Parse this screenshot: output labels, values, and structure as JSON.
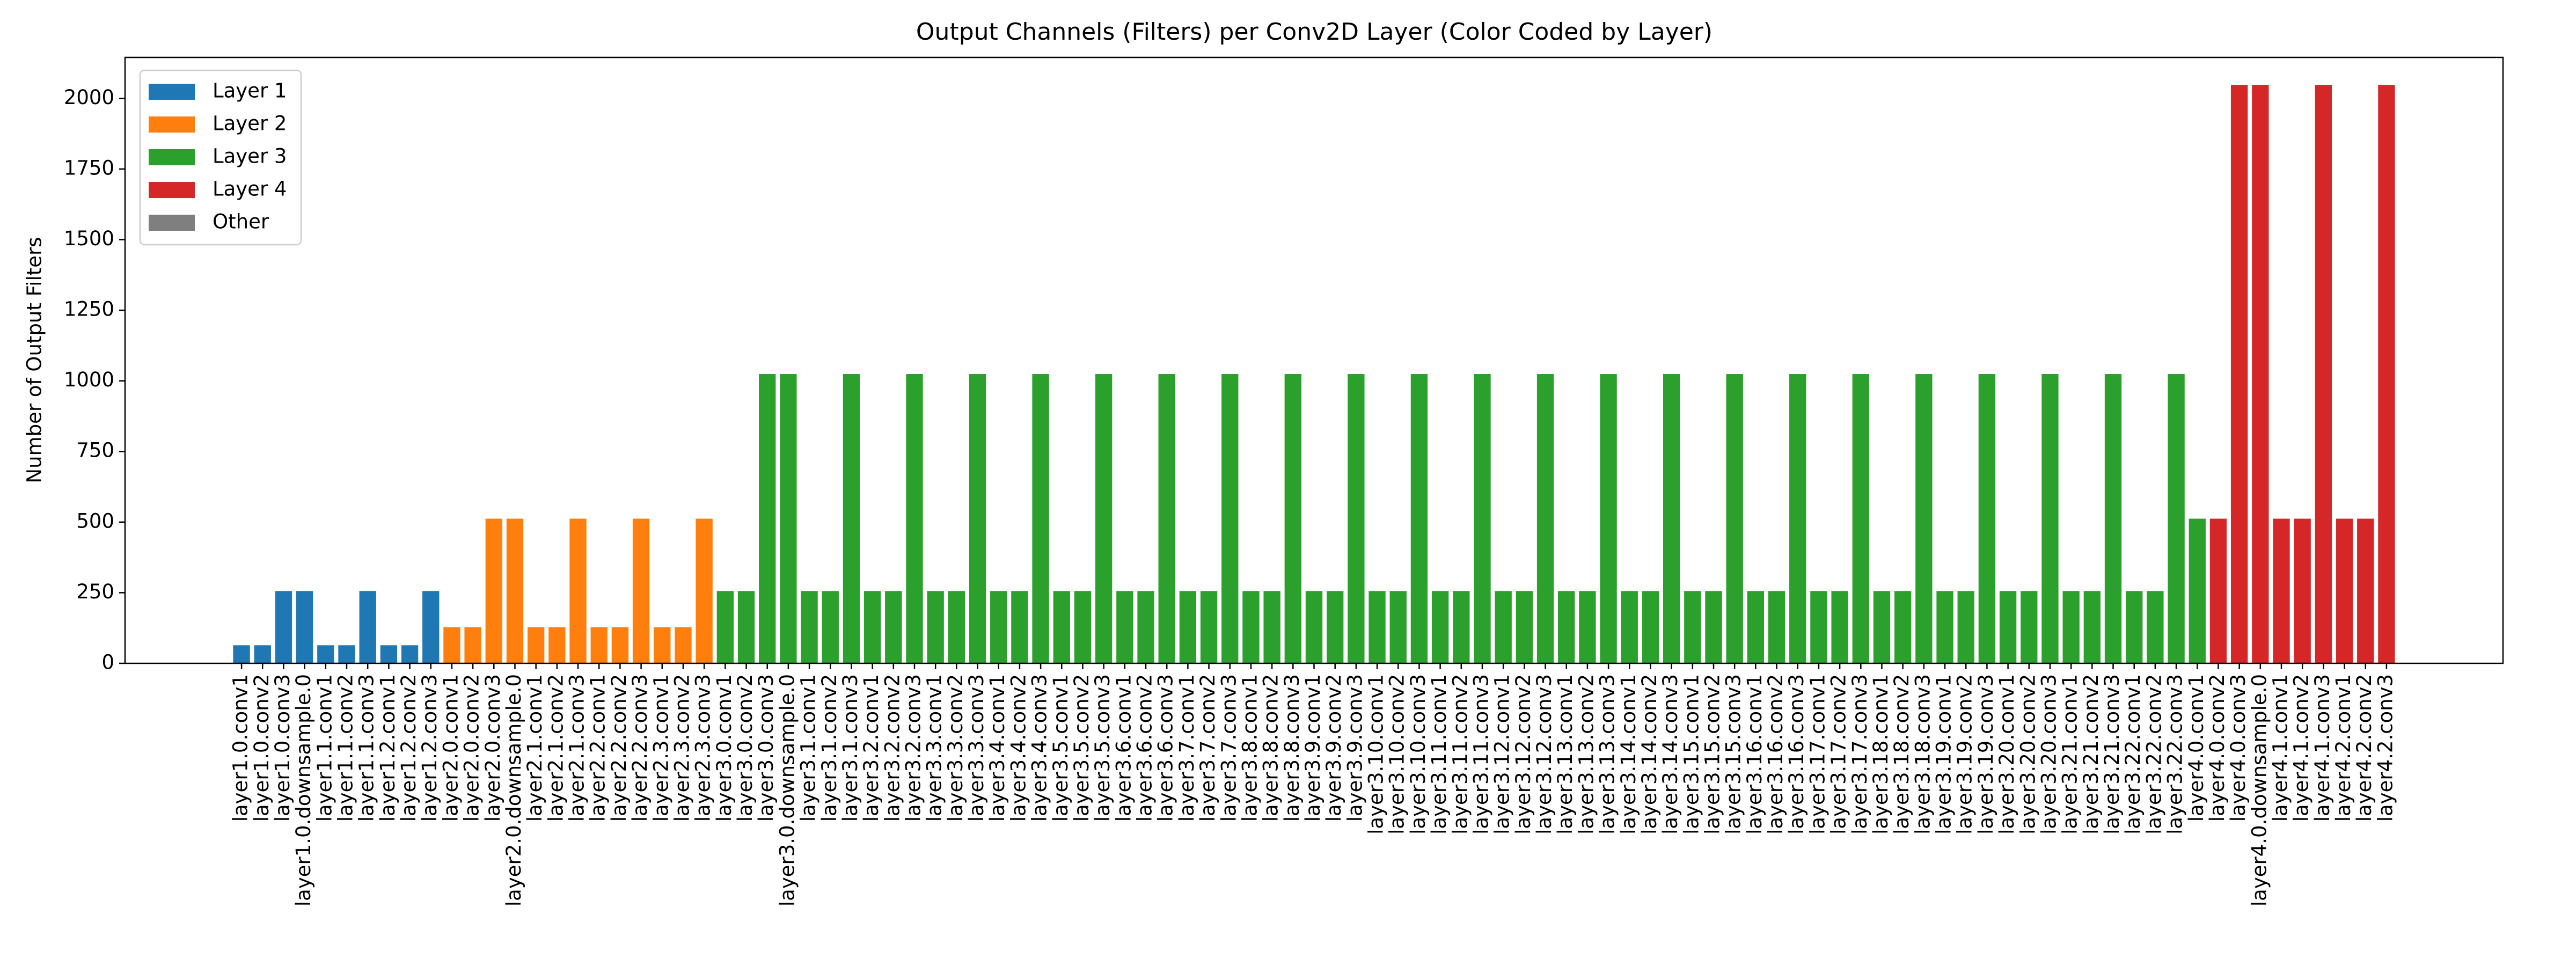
{
  "chart_data": {
    "type": "bar",
    "title": "Output Channels (Filters) per Conv2D Layer (Color Coded by Layer)",
    "y_label": "Number of Output Filters",
    "categories": [
      "layer1.0.conv1",
      "layer1.0.conv2",
      "layer1.0.conv3",
      "layer1.0.downsample.0",
      "layer1.1.conv1",
      "layer1.1.conv2",
      "layer1.1.conv3",
      "layer1.2.conv1",
      "layer1.2.conv2",
      "layer1.2.conv3",
      "layer2.0.conv1",
      "layer2.0.conv2",
      "layer2.0.conv3",
      "layer2.0.downsample.0",
      "layer2.1.conv1",
      "layer2.1.conv2",
      "layer2.1.conv3",
      "layer2.2.conv1",
      "layer2.2.conv2",
      "layer2.2.conv3",
      "layer2.3.conv1",
      "layer2.3.conv2",
      "layer2.3.conv3",
      "layer3.0.conv1",
      "layer3.0.conv2",
      "layer3.0.conv3",
      "layer3.0.downsample.0",
      "layer3.1.conv1",
      "layer3.1.conv2",
      "layer3.1.conv3",
      "layer3.2.conv1",
      "layer3.2.conv2",
      "layer3.2.conv3",
      "layer3.3.conv1",
      "layer3.3.conv2",
      "layer3.3.conv3",
      "layer3.4.conv1",
      "layer3.4.conv2",
      "layer3.4.conv3",
      "layer3.5.conv1",
      "layer3.5.conv2",
      "layer3.5.conv3",
      "layer3.6.conv1",
      "layer3.6.conv2",
      "layer3.6.conv3",
      "layer3.7.conv1",
      "layer3.7.conv2",
      "layer3.7.conv3",
      "layer3.8.conv1",
      "layer3.8.conv2",
      "layer3.8.conv3",
      "layer3.9.conv1",
      "layer3.9.conv2",
      "layer3.9.conv3",
      "layer3.10.conv1",
      "layer3.10.conv2",
      "layer3.10.conv3",
      "layer3.11.conv1",
      "layer3.11.conv2",
      "layer3.11.conv3",
      "layer3.12.conv1",
      "layer3.12.conv2",
      "layer3.12.conv3",
      "layer3.13.conv1",
      "layer3.13.conv2",
      "layer3.13.conv3",
      "layer3.14.conv1",
      "layer3.14.conv2",
      "layer3.14.conv3",
      "layer3.15.conv1",
      "layer3.15.conv2",
      "layer3.15.conv3",
      "layer3.16.conv1",
      "layer3.16.conv2",
      "layer3.16.conv3",
      "layer3.17.conv1",
      "layer3.17.conv2",
      "layer3.17.conv3",
      "layer3.18.conv1",
      "layer3.18.conv2",
      "layer3.18.conv3",
      "layer3.19.conv1",
      "layer3.19.conv2",
      "layer3.19.conv3",
      "layer3.20.conv1",
      "layer3.20.conv2",
      "layer3.20.conv3",
      "layer3.21.conv1",
      "layer3.21.conv2",
      "layer3.21.conv3",
      "layer3.22.conv1",
      "layer3.22.conv2",
      "layer3.22.conv3",
      "layer4.0.conv1",
      "layer4.0.conv2",
      "layer4.0.conv3",
      "layer4.0.downsample.0",
      "layer4.1.conv1",
      "layer4.1.conv2",
      "layer4.1.conv3",
      "layer4.2.conv1",
      "layer4.2.conv2",
      "layer4.2.conv3"
    ],
    "values": [
      64,
      64,
      256,
      256,
      64,
      64,
      256,
      64,
      64,
      256,
      128,
      128,
      512,
      512,
      128,
      128,
      512,
      128,
      128,
      512,
      128,
      128,
      512,
      256,
      256,
      1024,
      1024,
      256,
      256,
      1024,
      256,
      256,
      1024,
      256,
      256,
      1024,
      256,
      256,
      1024,
      256,
      256,
      1024,
      256,
      256,
      1024,
      256,
      256,
      1024,
      256,
      256,
      1024,
      256,
      256,
      1024,
      256,
      256,
      1024,
      256,
      256,
      1024,
      256,
      256,
      1024,
      256,
      256,
      1024,
      256,
      256,
      1024,
      256,
      256,
      1024,
      256,
      256,
      1024,
      256,
      256,
      1024,
      256,
      256,
      1024,
      256,
      256,
      1024,
      256,
      256,
      1024,
      256,
      256,
      1024,
      256,
      256,
      1024,
      512,
      512,
      2048,
      2048,
      512,
      512,
      2048,
      512,
      512,
      2048
    ],
    "colors": [
      "#1f77b4",
      "#1f77b4",
      "#1f77b4",
      "#1f77b4",
      "#1f77b4",
      "#1f77b4",
      "#1f77b4",
      "#1f77b4",
      "#1f77b4",
      "#1f77b4",
      "#ff7f0e",
      "#ff7f0e",
      "#ff7f0e",
      "#ff7f0e",
      "#ff7f0e",
      "#ff7f0e",
      "#ff7f0e",
      "#ff7f0e",
      "#ff7f0e",
      "#ff7f0e",
      "#ff7f0e",
      "#ff7f0e",
      "#ff7f0e",
      "#2ca02c",
      "#2ca02c",
      "#2ca02c",
      "#2ca02c",
      "#2ca02c",
      "#2ca02c",
      "#2ca02c",
      "#2ca02c",
      "#2ca02c",
      "#2ca02c",
      "#2ca02c",
      "#2ca02c",
      "#2ca02c",
      "#2ca02c",
      "#2ca02c",
      "#2ca02c",
      "#2ca02c",
      "#2ca02c",
      "#2ca02c",
      "#2ca02c",
      "#2ca02c",
      "#2ca02c",
      "#2ca02c",
      "#2ca02c",
      "#2ca02c",
      "#2ca02c",
      "#2ca02c",
      "#2ca02c",
      "#2ca02c",
      "#2ca02c",
      "#2ca02c",
      "#2ca02c",
      "#2ca02c",
      "#2ca02c",
      "#2ca02c",
      "#2ca02c",
      "#2ca02c",
      "#2ca02c",
      "#2ca02c",
      "#2ca02c",
      "#2ca02c",
      "#2ca02c",
      "#2ca02c",
      "#2ca02c",
      "#2ca02c",
      "#2ca02c",
      "#2ca02c",
      "#2ca02c",
      "#2ca02c",
      "#2ca02c",
      "#2ca02c",
      "#2ca02c",
      "#2ca02c",
      "#2ca02c",
      "#2ca02c",
      "#2ca02c",
      "#2ca02c",
      "#2ca02c",
      "#2ca02c",
      "#2ca02c",
      "#2ca02c",
      "#2ca02c",
      "#2ca02c",
      "#2ca02c",
      "#2ca02c",
      "#2ca02c",
      "#2ca02c",
      "#2ca02c",
      "#2ca02c",
      "#2ca02c",
      "#2ca02c",
      "#d62728",
      "#d62728",
      "#d62728",
      "#d62728",
      "#d62728",
      "#d62728",
      "#d62728",
      "#d62728",
      "#d62728",
      "#d62728"
    ],
    "legend": [
      {
        "name": "Layer 1",
        "color": "#1f77b4"
      },
      {
        "name": "Layer 2",
        "color": "#ff7f0e"
      },
      {
        "name": "Layer 3",
        "color": "#2ca02c"
      },
      {
        "name": "Layer 4",
        "color": "#d62728"
      },
      {
        "name": "Other",
        "color": "#7f7f7f"
      }
    ],
    "legend_position": "upper left",
    "ylim": [
      0,
      2145
    ],
    "yticks": [
      0,
      250,
      500,
      750,
      1000,
      1250,
      1500,
      1750,
      2000
    ],
    "grid": false
  }
}
